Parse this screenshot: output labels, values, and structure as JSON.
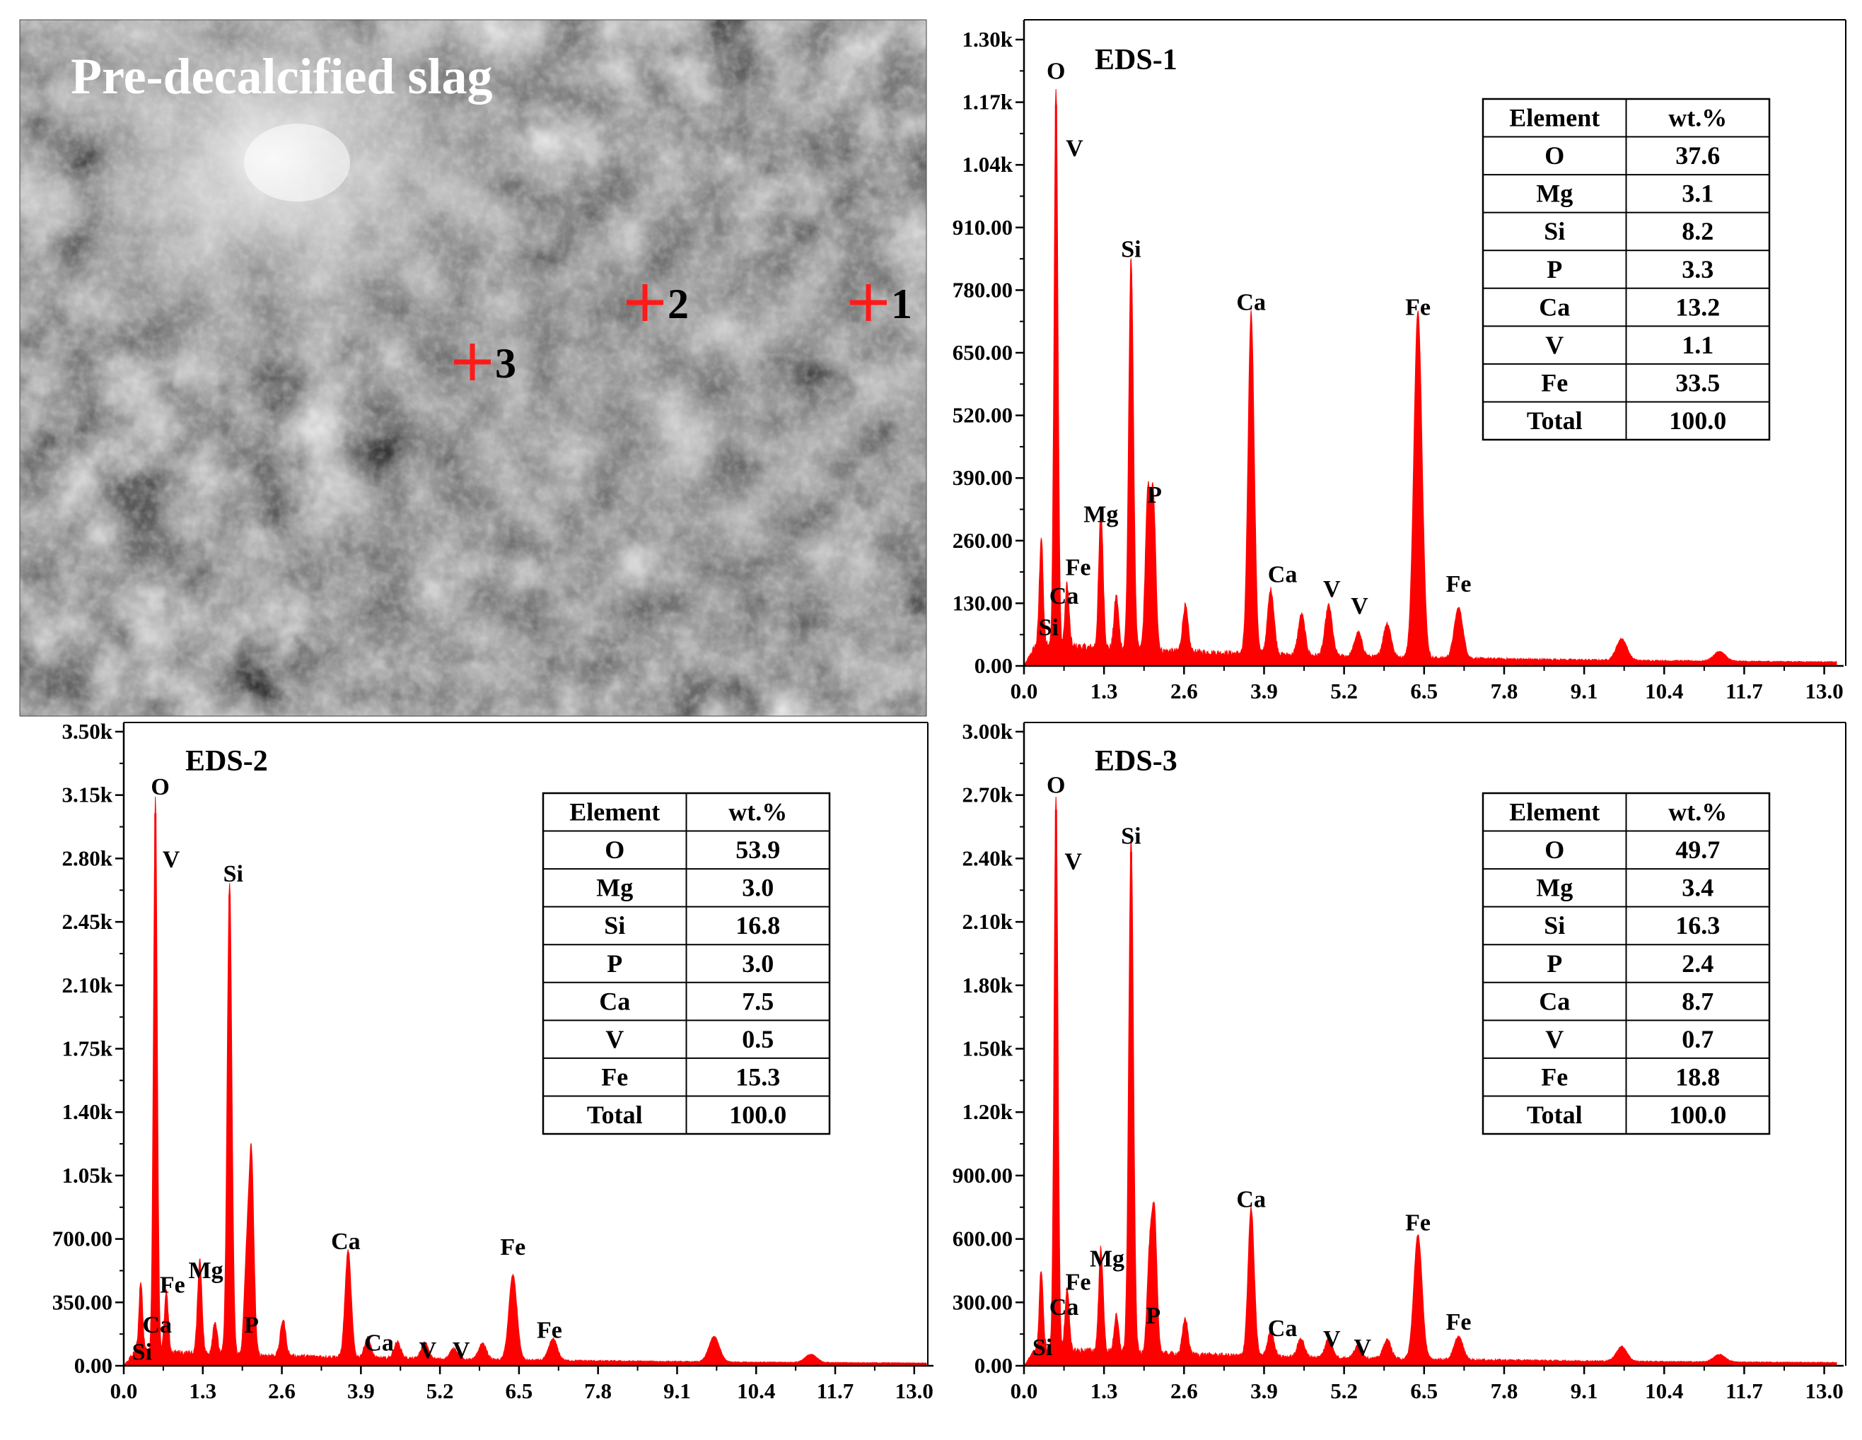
{
  "sem": {
    "title": "Pre-decalcified slag",
    "markers": [
      {
        "label": "1"
      },
      {
        "label": "2"
      },
      {
        "label": "3"
      }
    ],
    "marker_color": "#ff1a1a"
  },
  "chart_data": [
    {
      "type": "area",
      "title": "EDS-1",
      "xlabel": "",
      "ylabel": "",
      "xlim": [
        0,
        13.2
      ],
      "ylim": [
        0,
        1300
      ],
      "xticks": [
        0.0,
        1.3,
        2.6,
        3.9,
        5.2,
        6.5,
        7.8,
        9.1,
        10.4,
        11.7,
        13.0
      ],
      "xtick_labels": [
        "0.0",
        "1.3",
        "2.6",
        "3.9",
        "5.2",
        "6.5",
        "7.8",
        "9.1",
        "10.4",
        "11.7",
        "13.0"
      ],
      "yticks": [
        0,
        130,
        260,
        390,
        520,
        650,
        780,
        910,
        1040,
        1170,
        1300
      ],
      "ytick_labels": [
        "0.00",
        "130.00",
        "260.00",
        "390.00",
        "520.00",
        "650.00",
        "780.00",
        "910.00",
        "1.04k",
        "1.17k",
        "1.30k"
      ],
      "color": "#ff0000",
      "baseline": 38,
      "peaks": [
        {
          "x": 0.28,
          "y": 225
        },
        {
          "x": 0.52,
          "y": 1165
        },
        {
          "x": 0.7,
          "y": 130
        },
        {
          "x": 1.25,
          "y": 285
        },
        {
          "x": 1.5,
          "y": 110
        },
        {
          "x": 1.74,
          "y": 815
        },
        {
          "x": 2.01,
          "y": 310
        },
        {
          "x": 2.1,
          "y": 310
        },
        {
          "x": 2.62,
          "y": 95
        },
        {
          "x": 3.69,
          "y": 710
        },
        {
          "x": 4.01,
          "y": 135
        },
        {
          "x": 4.51,
          "y": 85
        },
        {
          "x": 4.95,
          "y": 105
        },
        {
          "x": 5.43,
          "y": 50
        },
        {
          "x": 5.9,
          "y": 70
        },
        {
          "x": 6.4,
          "y": 720
        },
        {
          "x": 7.06,
          "y": 105
        },
        {
          "x": 9.71,
          "y": 45
        },
        {
          "x": 11.3,
          "y": 20
        }
      ],
      "peak_labels": [
        {
          "text": "O",
          "x": 0.52,
          "y": 1210
        },
        {
          "text": "V",
          "x": 0.82,
          "y": 1050
        },
        {
          "text": "Si",
          "x": 1.74,
          "y": 840
        },
        {
          "text": "Ca",
          "x": 3.69,
          "y": 730
        },
        {
          "text": "Fe",
          "x": 6.4,
          "y": 720
        },
        {
          "text": "Mg",
          "x": 1.25,
          "y": 290
        },
        {
          "text": "P",
          "x": 2.12,
          "y": 330
        },
        {
          "text": "Fe",
          "x": 0.88,
          "y": 180
        },
        {
          "text": "Ca",
          "x": 0.65,
          "y": 120
        },
        {
          "text": "Si",
          "x": 0.4,
          "y": 55
        },
        {
          "text": "Ca",
          "x": 4.2,
          "y": 165
        },
        {
          "text": "V",
          "x": 5.0,
          "y": 135
        },
        {
          "text": "V",
          "x": 5.45,
          "y": 100
        },
        {
          "text": "Fe",
          "x": 7.06,
          "y": 145
        }
      ],
      "table": {
        "headers": [
          "Element",
          "wt.%"
        ],
        "rows": [
          [
            "O",
            "37.6"
          ],
          [
            "Mg",
            "3.1"
          ],
          [
            "Si",
            "8.2"
          ],
          [
            "P",
            "3.3"
          ],
          [
            "Ca",
            "13.2"
          ],
          [
            "V",
            "1.1"
          ],
          [
            "Fe",
            "33.5"
          ],
          [
            "Total",
            "100.0"
          ]
        ]
      }
    },
    {
      "type": "area",
      "title": "EDS-2",
      "xlabel": "",
      "ylabel": "",
      "xlim": [
        0,
        13.2
      ],
      "ylim": [
        0,
        3500
      ],
      "xticks": [
        0.0,
        1.3,
        2.6,
        3.9,
        5.2,
        6.5,
        7.8,
        9.1,
        10.4,
        11.7,
        13.0
      ],
      "xtick_labels": [
        "0.0",
        "1.3",
        "2.6",
        "3.9",
        "5.2",
        "6.5",
        "7.8",
        "9.1",
        "10.4",
        "11.7",
        "13.0"
      ],
      "yticks": [
        0,
        350,
        700,
        1050,
        1400,
        1750,
        2100,
        2450,
        2800,
        3150,
        3500
      ],
      "ytick_labels": [
        "0.00",
        "350.00",
        "700.00",
        "1.05k",
        "1.40k",
        "1.75k",
        "2.10k",
        "2.45k",
        "2.80k",
        "3.15k",
        "3.50k"
      ],
      "color": "#ff0000",
      "baseline": 70,
      "peaks": [
        {
          "x": 0.28,
          "y": 390
        },
        {
          "x": 0.52,
          "y": 3050
        },
        {
          "x": 0.7,
          "y": 330
        },
        {
          "x": 1.25,
          "y": 520
        },
        {
          "x": 1.5,
          "y": 180
        },
        {
          "x": 1.74,
          "y": 2600
        },
        {
          "x": 2.02,
          "y": 500
        },
        {
          "x": 2.1,
          "y": 1080
        },
        {
          "x": 2.62,
          "y": 200
        },
        {
          "x": 3.69,
          "y": 590
        },
        {
          "x": 4.01,
          "y": 110
        },
        {
          "x": 4.5,
          "y": 90
        },
        {
          "x": 4.95,
          "y": 90
        },
        {
          "x": 5.43,
          "y": 60
        },
        {
          "x": 5.9,
          "y": 90
        },
        {
          "x": 6.4,
          "y": 470
        },
        {
          "x": 7.06,
          "y": 120
        },
        {
          "x": 9.71,
          "y": 140
        },
        {
          "x": 11.3,
          "y": 45
        }
      ],
      "peak_labels": [
        {
          "text": "O",
          "x": 0.6,
          "y": 3130
        },
        {
          "text": "V",
          "x": 0.78,
          "y": 2730
        },
        {
          "text": "Si",
          "x": 1.8,
          "y": 2650
        },
        {
          "text": "Ca",
          "x": 3.65,
          "y": 620
        },
        {
          "text": "Fe",
          "x": 6.4,
          "y": 590
        },
        {
          "text": "Mg",
          "x": 1.35,
          "y": 460
        },
        {
          "text": "Fe",
          "x": 0.8,
          "y": 380
        },
        {
          "text": "P",
          "x": 2.1,
          "y": 160
        },
        {
          "text": "Ca",
          "x": 0.55,
          "y": 160
        },
        {
          "text": "Si",
          "x": 0.3,
          "y": 10
        },
        {
          "text": "Ca",
          "x": 4.2,
          "y": 60
        },
        {
          "text": "V",
          "x": 5.0,
          "y": 20
        },
        {
          "text": "V",
          "x": 5.55,
          "y": 20
        },
        {
          "text": "Fe",
          "x": 7.0,
          "y": 130
        }
      ],
      "table": {
        "headers": [
          "Element",
          "wt.%"
        ],
        "rows": [
          [
            "O",
            "53.9"
          ],
          [
            "Mg",
            "3.0"
          ],
          [
            "Si",
            "16.8"
          ],
          [
            "P",
            "3.0"
          ],
          [
            "Ca",
            "7.5"
          ],
          [
            "V",
            "0.5"
          ],
          [
            "Fe",
            "15.3"
          ],
          [
            "Total",
            "100.0"
          ]
        ]
      }
    },
    {
      "type": "area",
      "title": "EDS-3",
      "xlabel": "",
      "ylabel": "",
      "xlim": [
        0,
        13.2
      ],
      "ylim": [
        0,
        3000
      ],
      "xticks": [
        0.0,
        1.3,
        2.6,
        3.9,
        5.2,
        6.5,
        7.8,
        9.1,
        10.4,
        11.7,
        13.0
      ],
      "xtick_labels": [
        "0.0",
        "1.3",
        "2.6",
        "3.9",
        "5.2",
        "6.5",
        "7.8",
        "9.1",
        "10.4",
        "11.7",
        "13.0"
      ],
      "yticks": [
        0,
        300,
        600,
        900,
        1200,
        1500,
        1800,
        2100,
        2400,
        2700,
        3000
      ],
      "ytick_labels": [
        "0.00",
        "300.00",
        "600.00",
        "900.00",
        "1.20k",
        "1.50k",
        "1.80k",
        "2.10k",
        "2.40k",
        "2.70k",
        "3.00k"
      ],
      "color": "#ff0000",
      "baseline": 70,
      "peaks": [
        {
          "x": 0.28,
          "y": 380
        },
        {
          "x": 0.52,
          "y": 2630
        },
        {
          "x": 0.7,
          "y": 300
        },
        {
          "x": 1.25,
          "y": 490
        },
        {
          "x": 1.5,
          "y": 170
        },
        {
          "x": 1.74,
          "y": 2430
        },
        {
          "x": 2.04,
          "y": 450
        },
        {
          "x": 2.12,
          "y": 630
        },
        {
          "x": 2.62,
          "y": 170
        },
        {
          "x": 3.69,
          "y": 700
        },
        {
          "x": 4.01,
          "y": 120
        },
        {
          "x": 4.5,
          "y": 90
        },
        {
          "x": 4.95,
          "y": 90
        },
        {
          "x": 5.43,
          "y": 60
        },
        {
          "x": 5.9,
          "y": 90
        },
        {
          "x": 6.4,
          "y": 590
        },
        {
          "x": 7.06,
          "y": 110
        },
        {
          "x": 9.71,
          "y": 70
        },
        {
          "x": 11.3,
          "y": 35
        }
      ],
      "peak_labels": [
        {
          "text": "O",
          "x": 0.52,
          "y": 2690
        },
        {
          "text": "V",
          "x": 0.8,
          "y": 2330
        },
        {
          "text": "Si",
          "x": 1.74,
          "y": 2450
        },
        {
          "text": "Ca",
          "x": 3.69,
          "y": 730
        },
        {
          "text": "Fe",
          "x": 6.4,
          "y": 620
        },
        {
          "text": "Mg",
          "x": 1.35,
          "y": 450
        },
        {
          "text": "Fe",
          "x": 0.88,
          "y": 340
        },
        {
          "text": "P",
          "x": 2.1,
          "y": 180
        },
        {
          "text": "Ca",
          "x": 0.65,
          "y": 220
        },
        {
          "text": "Si",
          "x": 0.3,
          "y": 30
        },
        {
          "text": "Ca",
          "x": 4.2,
          "y": 120
        },
        {
          "text": "V",
          "x": 5.0,
          "y": 70
        },
        {
          "text": "V",
          "x": 5.5,
          "y": 30
        },
        {
          "text": "Fe",
          "x": 7.06,
          "y": 150
        }
      ],
      "table": {
        "headers": [
          "Element",
          "wt.%"
        ],
        "rows": [
          [
            "O",
            "49.7"
          ],
          [
            "Mg",
            "3.4"
          ],
          [
            "Si",
            "16.3"
          ],
          [
            "P",
            "2.4"
          ],
          [
            "Ca",
            "8.7"
          ],
          [
            "V",
            "0.7"
          ],
          [
            "Fe",
            "18.8"
          ],
          [
            "Total",
            "100.0"
          ]
        ]
      }
    }
  ]
}
